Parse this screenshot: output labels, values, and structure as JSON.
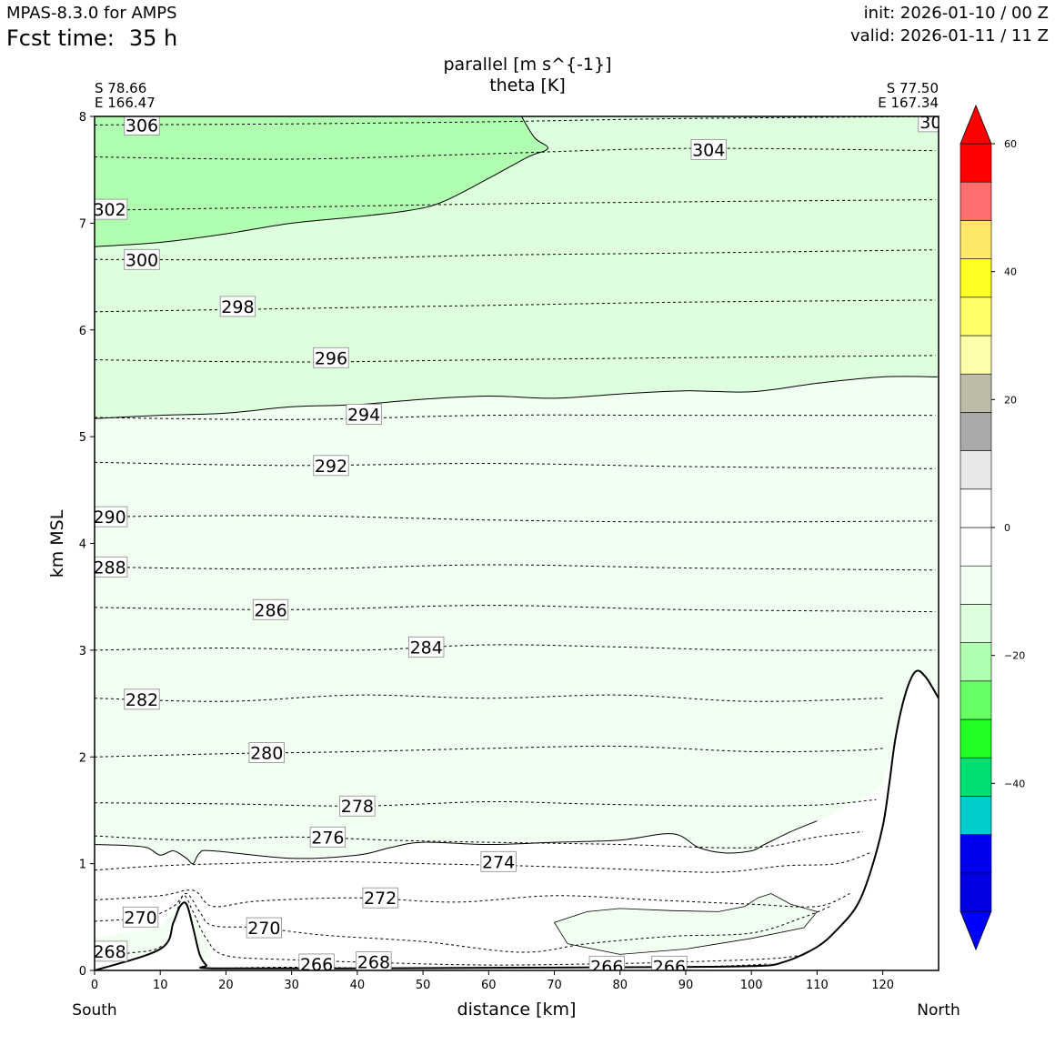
{
  "header": {
    "model": "MPAS-8.3.0 for AMPS",
    "fcst_label": "Fcst time:",
    "fcst_value": "35 h",
    "init": "init: 2026-01-10 / 00 Z",
    "valid": "valid: 2026-01-11 / 11 Z"
  },
  "chart_data": {
    "type": "contour-cross-section",
    "title_fill": "parallel [m s^{-1}]",
    "title_contour": "theta [K]",
    "xlabel": "distance [km]",
    "ylabel": "km MSL",
    "xlim": [
      0,
      128.5
    ],
    "ylim": [
      0,
      8
    ],
    "x_ticks": [
      0,
      10,
      20,
      30,
      40,
      50,
      60,
      70,
      80,
      90,
      100,
      110,
      120
    ],
    "y_ticks": [
      0,
      1,
      2,
      3,
      4,
      5,
      6,
      7,
      8
    ],
    "left_end": {
      "lat": "S 78.66",
      "lon": "E 166.47",
      "label": "South"
    },
    "right_end": {
      "lat": "S 77.50",
      "lon": "E 167.34",
      "label": "North"
    },
    "colorbar": {
      "vmin": -60,
      "vmax": 60,
      "step": 5,
      "tick_labels": [
        {
          "value": 60,
          "text": "60"
        },
        {
          "value": 40,
          "text": "40"
        },
        {
          "value": 20,
          "text": "20"
        },
        {
          "value": 0,
          "text": "0"
        },
        {
          "value": -20,
          "text": "−20"
        },
        {
          "value": -40,
          "text": "−40"
        }
      ],
      "colors": [
        "#0000e0",
        "#0000f0",
        "#00cccc",
        "#00e070",
        "#22ff22",
        "#66ff66",
        "#b0ffb0",
        "#ddffdd",
        "#f0fff0",
        "#ffffff",
        "#ffffff",
        "#e8e8e8",
        "#aaaaaa",
        "#bcbca8",
        "#ffffaa",
        "#ffff66",
        "#ffff22",
        "#ffe866",
        "#ff6e6e",
        "#ff0000"
      ],
      "extend_low": "#0000ff",
      "extend_high": "#ff0000"
    },
    "fill_regions": [
      {
        "name": "band--15-to--10",
        "color": "#ddffdd"
      },
      {
        "name": "band--20-to--15",
        "color": "#b0ffb0"
      },
      {
        "name": "band--10-to--5",
        "color": "#f0fff0"
      }
    ],
    "theta_contours": [
      {
        "value": 266,
        "points": [
          [
            18,
            0.02
          ],
          [
            30,
            0.03
          ],
          [
            45,
            0.02
          ],
          [
            60,
            0.02
          ],
          [
            75,
            0.03
          ],
          [
            95,
            0.04
          ],
          [
            108,
            0.08
          ]
        ]
      },
      {
        "value": 268,
        "points": [
          [
            0,
            0.12
          ],
          [
            5,
            0.16
          ],
          [
            10,
            0.22
          ],
          [
            12,
            0.45
          ],
          [
            13.5,
            0.7
          ],
          [
            15,
            0.55
          ],
          [
            17,
            0.3
          ],
          [
            20,
            0.14
          ],
          [
            30,
            0.1
          ],
          [
            45,
            0.07
          ],
          [
            60,
            0.05
          ],
          [
            75,
            0.06
          ],
          [
            90,
            0.08
          ],
          [
            105,
            0.12
          ],
          [
            110,
            0.2
          ]
        ]
      },
      {
        "value": 270,
        "points": [
          [
            0,
            0.46
          ],
          [
            8,
            0.5
          ],
          [
            12,
            0.6
          ],
          [
            14,
            0.72
          ],
          [
            16,
            0.55
          ],
          [
            18,
            0.42
          ],
          [
            25,
            0.4
          ],
          [
            35,
            0.33
          ],
          [
            50,
            0.27
          ],
          [
            65,
            0.17
          ],
          [
            75,
            0.25
          ],
          [
            88,
            0.32
          ],
          [
            100,
            0.35
          ],
          [
            108,
            0.5
          ],
          [
            112,
            0.6
          ]
        ]
      },
      {
        "value": 272,
        "points": [
          [
            0,
            0.66
          ],
          [
            10,
            0.7
          ],
          [
            15,
            0.75
          ],
          [
            18,
            0.6
          ],
          [
            25,
            0.65
          ],
          [
            40,
            0.68
          ],
          [
            55,
            0.64
          ],
          [
            70,
            0.7
          ],
          [
            85,
            0.66
          ],
          [
            100,
            0.62
          ],
          [
            110,
            0.6
          ],
          [
            115,
            0.72
          ]
        ]
      },
      {
        "value": 274,
        "points": [
          [
            0,
            0.94
          ],
          [
            10,
            0.98
          ],
          [
            20,
            1.0
          ],
          [
            35,
            1.02
          ],
          [
            50,
            1.0
          ],
          [
            65,
            0.98
          ],
          [
            80,
            0.95
          ],
          [
            95,
            0.92
          ],
          [
            105,
            0.98
          ],
          [
            113,
            1.0
          ],
          [
            118,
            1.1
          ]
        ]
      },
      {
        "value": 276,
        "points": [
          [
            0,
            1.26
          ],
          [
            15,
            1.22
          ],
          [
            30,
            1.25
          ],
          [
            45,
            1.22
          ],
          [
            60,
            1.2
          ],
          [
            80,
            1.18
          ],
          [
            100,
            1.15
          ],
          [
            110,
            1.25
          ],
          [
            117,
            1.3
          ]
        ]
      },
      {
        "value": 278,
        "points": [
          [
            0,
            1.57
          ],
          [
            20,
            1.56
          ],
          [
            40,
            1.54
          ],
          [
            60,
            1.58
          ],
          [
            75,
            1.56
          ],
          [
            95,
            1.54
          ],
          [
            110,
            1.55
          ],
          [
            119,
            1.6
          ]
        ]
      },
      {
        "value": 280,
        "points": [
          [
            0,
            2.0
          ],
          [
            20,
            2.03
          ],
          [
            40,
            2.05
          ],
          [
            60,
            2.08
          ],
          [
            80,
            2.1
          ],
          [
            100,
            2.05
          ],
          [
            115,
            2.06
          ],
          [
            120,
            2.08
          ]
        ]
      },
      {
        "value": 282,
        "points": [
          [
            0,
            2.55
          ],
          [
            20,
            2.52
          ],
          [
            40,
            2.58
          ],
          [
            60,
            2.55
          ],
          [
            80,
            2.58
          ],
          [
            100,
            2.52
          ],
          [
            120,
            2.55
          ]
        ]
      },
      {
        "value": 284,
        "points": [
          [
            0,
            3.0
          ],
          [
            20,
            3.02
          ],
          [
            40,
            3.0
          ],
          [
            60,
            3.05
          ],
          [
            80,
            3.03
          ],
          [
            100,
            3.0
          ],
          [
            128,
            3.0
          ]
        ]
      },
      {
        "value": 286,
        "points": [
          [
            0,
            3.4
          ],
          [
            30,
            3.38
          ],
          [
            60,
            3.42
          ],
          [
            90,
            3.38
          ],
          [
            128,
            3.36
          ]
        ]
      },
      {
        "value": 288,
        "points": [
          [
            0,
            3.78
          ],
          [
            30,
            3.76
          ],
          [
            60,
            3.8
          ],
          [
            90,
            3.77
          ],
          [
            128,
            3.75
          ]
        ]
      },
      {
        "value": 290,
        "points": [
          [
            0,
            4.25
          ],
          [
            30,
            4.26
          ],
          [
            60,
            4.22
          ],
          [
            90,
            4.2
          ],
          [
            128,
            4.21
          ]
        ]
      },
      {
        "value": 292,
        "points": [
          [
            0,
            4.76
          ],
          [
            30,
            4.73
          ],
          [
            60,
            4.75
          ],
          [
            90,
            4.72
          ],
          [
            128,
            4.7
          ]
        ]
      },
      {
        "value": 294,
        "points": [
          [
            0,
            5.18
          ],
          [
            30,
            5.16
          ],
          [
            60,
            5.2
          ],
          [
            90,
            5.2
          ],
          [
            128,
            5.2
          ]
        ]
      },
      {
        "value": 296,
        "points": [
          [
            0,
            5.72
          ],
          [
            30,
            5.7
          ],
          [
            60,
            5.72
          ],
          [
            90,
            5.74
          ],
          [
            128,
            5.76
          ]
        ]
      },
      {
        "value": 298,
        "points": [
          [
            0,
            6.17
          ],
          [
            30,
            6.2
          ],
          [
            60,
            6.23
          ],
          [
            90,
            6.26
          ],
          [
            128,
            6.28
          ]
        ]
      },
      {
        "value": 300,
        "points": [
          [
            0,
            6.66
          ],
          [
            30,
            6.66
          ],
          [
            60,
            6.7
          ],
          [
            90,
            6.72
          ],
          [
            128,
            6.75
          ]
        ]
      },
      {
        "value": 302,
        "points": [
          [
            0,
            7.12
          ],
          [
            30,
            7.15
          ],
          [
            60,
            7.18
          ],
          [
            90,
            7.2
          ],
          [
            128,
            7.22
          ]
        ]
      },
      {
        "value": 304,
        "points": [
          [
            0,
            7.62
          ],
          [
            30,
            7.6
          ],
          [
            60,
            7.65
          ],
          [
            90,
            7.7
          ],
          [
            128,
            7.68
          ]
        ]
      },
      {
        "value": 306,
        "points": [
          [
            0,
            7.92
          ],
          [
            30,
            7.93
          ],
          [
            60,
            7.95
          ],
          [
            90,
            7.98
          ],
          [
            128,
            8.0
          ]
        ]
      }
    ],
    "contour_labels": [
      {
        "text": "306",
        "x": 7.2,
        "y": 7.92
      },
      {
        "text": "304",
        "x": 93.5,
        "y": 7.69
      },
      {
        "text": "302",
        "x": 2.3,
        "y": 7.13
      },
      {
        "text": "300",
        "x": 7.2,
        "y": 6.66
      },
      {
        "text": "298",
        "x": 21.8,
        "y": 6.22
      },
      {
        "text": "296",
        "x": 36.0,
        "y": 5.74
      },
      {
        "text": "294",
        "x": 41.0,
        "y": 5.21
      },
      {
        "text": "292",
        "x": 36.0,
        "y": 4.73
      },
      {
        "text": "290",
        "x": 2.3,
        "y": 4.25
      },
      {
        "text": "288",
        "x": 2.3,
        "y": 3.78
      },
      {
        "text": "286",
        "x": 26.8,
        "y": 3.38
      },
      {
        "text": "284",
        "x": 50.5,
        "y": 3.03
      },
      {
        "text": "282",
        "x": 7.2,
        "y": 2.54
      },
      {
        "text": "280",
        "x": 26.2,
        "y": 2.04
      },
      {
        "text": "278",
        "x": 40.0,
        "y": 1.54
      },
      {
        "text": "276",
        "x": 35.5,
        "y": 1.25
      },
      {
        "text": "274",
        "x": 61.5,
        "y": 1.02
      },
      {
        "text": "272",
        "x": 43.5,
        "y": 0.68
      },
      {
        "text": "270",
        "x": 7.0,
        "y": 0.5
      },
      {
        "text": "270",
        "x": 25.8,
        "y": 0.4
      },
      {
        "text": "268",
        "x": 2.3,
        "y": 0.18
      },
      {
        "text": "268",
        "x": 42.5,
        "y": 0.08
      },
      {
        "text": "266",
        "x": 33.8,
        "y": 0.06
      },
      {
        "text": "266",
        "x": 78.0,
        "y": 0.04
      },
      {
        "text": "266",
        "x": 87.5,
        "y": 0.04
      },
      {
        "text": "30",
        "x": 127.3,
        "y": 7.95
      }
    ],
    "terrain": [
      [
        0,
        0
      ],
      [
        10,
        0.2
      ],
      [
        12,
        0.45
      ],
      [
        13,
        0.6
      ],
      [
        14,
        0.62
      ],
      [
        15,
        0.4
      ],
      [
        16,
        0.15
      ],
      [
        17,
        0.05
      ],
      [
        18,
        0.02
      ],
      [
        40,
        0.02
      ],
      [
        80,
        0.03
      ],
      [
        100,
        0.04
      ],
      [
        105,
        0.08
      ],
      [
        110,
        0.22
      ],
      [
        113,
        0.38
      ],
      [
        116,
        0.6
      ],
      [
        118,
        0.9
      ],
      [
        120,
        1.35
      ],
      [
        121,
        1.75
      ],
      [
        122,
        2.2
      ],
      [
        123.5,
        2.6
      ],
      [
        125,
        2.8
      ],
      [
        126.5,
        2.75
      ],
      [
        128.5,
        2.55
      ],
      [
        128.5,
        0
      ]
    ]
  }
}
